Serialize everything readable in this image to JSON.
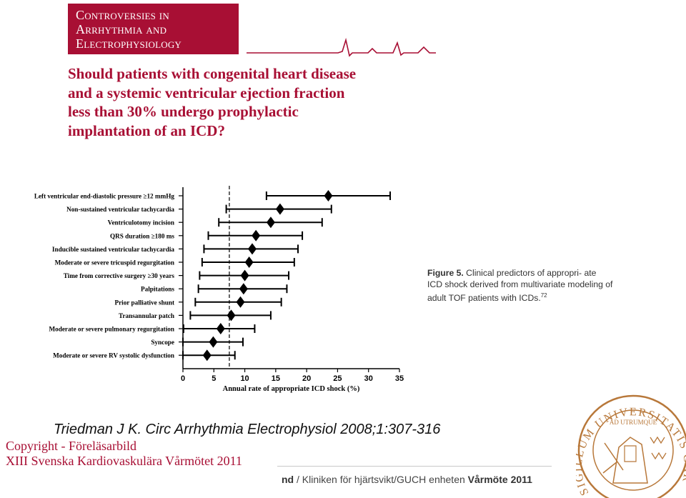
{
  "banner": {
    "lines": [
      "Controversies in",
      "Arrhythmia and",
      "Electrophysiology"
    ],
    "color": "#a80f34"
  },
  "question": {
    "lines": [
      "Should patients with congenital heart disease",
      "and a systemic ventricular ejection fraction",
      "less than 30% undergo prophylactic",
      "implantation of an ICD?"
    ]
  },
  "chart_data": {
    "type": "forest",
    "xlabel": "Annual rate of appropriate ICD shock (%)",
    "xlim": [
      0,
      35
    ],
    "xticks": [
      0,
      5,
      10,
      15,
      20,
      25,
      30,
      35
    ],
    "reference_line": 7.5,
    "categories": [
      "Left ventricular end-diastolic pressure ≥12 mmHg",
      "Non-sustained ventricular tachycardia",
      "Ventriculotomy incision",
      "QRS duration ≥180 ms",
      "Inducible sustained ventricular tachycardia",
      "Moderate or severe tricuspid regurgitation",
      "Time from corrective surgery ≥30 years",
      "Palpitations",
      "Prior palliative shunt",
      "Transannular patch",
      "Moderate or severe pulmonary regurgitation",
      "Syncope",
      "Moderate or severe RV systolic dysfunction"
    ],
    "estimate": [
      23.5,
      15.7,
      14.2,
      11.8,
      11.2,
      10.7,
      10.0,
      9.8,
      9.3,
      7.8,
      6.1,
      4.9,
      3.9
    ],
    "lower": [
      13.5,
      7.0,
      5.8,
      4.1,
      3.4,
      3.1,
      2.7,
      2.5,
      2.0,
      1.2,
      0.1,
      0.0,
      0.0
    ],
    "upper": [
      33.5,
      24.0,
      22.5,
      19.3,
      18.6,
      18.0,
      17.1,
      16.8,
      15.9,
      14.2,
      11.6,
      9.7,
      8.4
    ],
    "marker": "diamond",
    "color": "#000000"
  },
  "caption": {
    "label": "Figure 5.",
    "text": " Clinical predictors of appropri- ate ICD shock derived from multivariate modeling of adult TOF patients with ICDs.",
    "ref": "72"
  },
  "citation": "Triedman J K. Circ Arrhythmia Electrophysiol 2008;1:307-316",
  "copyright": {
    "line1": "Copyright - Föreläsarbild",
    "line2": "XIII Svenska Kardiovaskulära Vårmötet 2011"
  },
  "footer": {
    "prefix": "nd",
    "text": " / Kliniken för hjärtsvikt/GUCH enheten ",
    "bold": "Vårmöte 2011"
  },
  "seal": {
    "outer_text": "SIGILLUM UNIVERSITATIS CAROLINAE",
    "inner_text": "AD UTRUMQUE",
    "color": "#b8783a"
  }
}
